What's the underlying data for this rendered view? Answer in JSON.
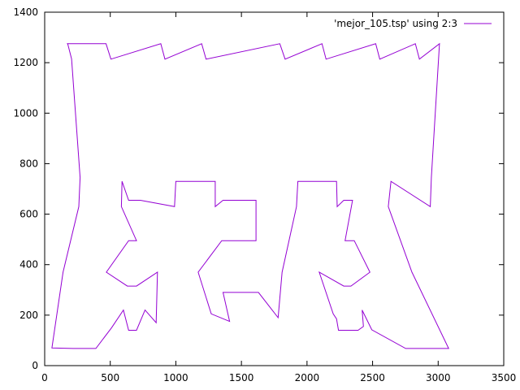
{
  "chart_data": {
    "type": "line",
    "xlim": [
      0,
      3500
    ],
    "ylim": [
      0,
      1400
    ],
    "x_ticks": [
      0,
      500,
      1000,
      1500,
      2000,
      2500,
      3000,
      3500
    ],
    "y_ticks": [
      0,
      200,
      400,
      600,
      800,
      1000,
      1200,
      1400
    ],
    "x_tick_labels": [
      "0",
      "500",
      "1000",
      "1500",
      "2000",
      "2500",
      "3000",
      "3500"
    ],
    "y_tick_labels": [
      "0",
      "200",
      "400",
      "600",
      "800",
      "1000",
      "1200",
      "1400"
    ],
    "grid": false,
    "legend_position": "top-right",
    "series": [
      {
        "name": "'mejor_105.tsp' using 2:3",
        "color": "#9400d3",
        "points": [
          [
            169,
            1275
          ],
          [
            468,
            1275
          ],
          [
            505,
            1214
          ],
          [
            885,
            1275
          ],
          [
            917,
            1214
          ],
          [
            1197,
            1275
          ],
          [
            1230,
            1214
          ],
          [
            1793,
            1275
          ],
          [
            1833,
            1214
          ],
          [
            2114,
            1275
          ],
          [
            2145,
            1214
          ],
          [
            2524,
            1275
          ],
          [
            2555,
            1214
          ],
          [
            2826,
            1275
          ],
          [
            2857,
            1214
          ],
          [
            3010,
            1275
          ],
          [
            2948,
            745
          ],
          [
            2940,
            630
          ],
          [
            2640,
            730
          ],
          [
            2620,
            630
          ],
          [
            2800,
            370
          ],
          [
            3080,
            68
          ],
          [
            2752,
            68
          ],
          [
            2494,
            142
          ],
          [
            2420,
            220
          ],
          [
            2430,
            155
          ],
          [
            2389,
            140
          ],
          [
            2240,
            140
          ],
          [
            2225,
            185
          ],
          [
            2200,
            205
          ],
          [
            2093,
            370
          ],
          [
            2280,
            315
          ],
          [
            2335,
            315
          ],
          [
            2480,
            370
          ],
          [
            2360,
            495
          ],
          [
            2290,
            495
          ],
          [
            2347,
            655
          ],
          [
            2280,
            655
          ],
          [
            2230,
            630
          ],
          [
            2225,
            730
          ],
          [
            1930,
            730
          ],
          [
            1920,
            630
          ],
          [
            1810,
            370
          ],
          [
            1780,
            190
          ],
          [
            1630,
            290
          ],
          [
            1360,
            290
          ],
          [
            1410,
            175
          ],
          [
            1270,
            205
          ],
          [
            1170,
            370
          ],
          [
            1350,
            495
          ],
          [
            1611,
            495
          ],
          [
            1611,
            655
          ],
          [
            1360,
            655
          ],
          [
            1300,
            630
          ],
          [
            1300,
            730
          ],
          [
            1000,
            730
          ],
          [
            990,
            630
          ],
          [
            730,
            655
          ],
          [
            640,
            655
          ],
          [
            590,
            730
          ],
          [
            585,
            630
          ],
          [
            700,
            495
          ],
          [
            640,
            495
          ],
          [
            470,
            370
          ],
          [
            630,
            315
          ],
          [
            700,
            315
          ],
          [
            860,
            370
          ],
          [
            850,
            170
          ],
          [
            765,
            220
          ],
          [
            700,
            140
          ],
          [
            640,
            140
          ],
          [
            600,
            220
          ],
          [
            510,
            150
          ],
          [
            390,
            68
          ],
          [
            215,
            68
          ],
          [
            55,
            70
          ],
          [
            140,
            370
          ],
          [
            260,
            630
          ],
          [
            270,
            745
          ],
          [
            205,
            1215
          ],
          [
            175,
            1275
          ]
        ]
      }
    ]
  }
}
